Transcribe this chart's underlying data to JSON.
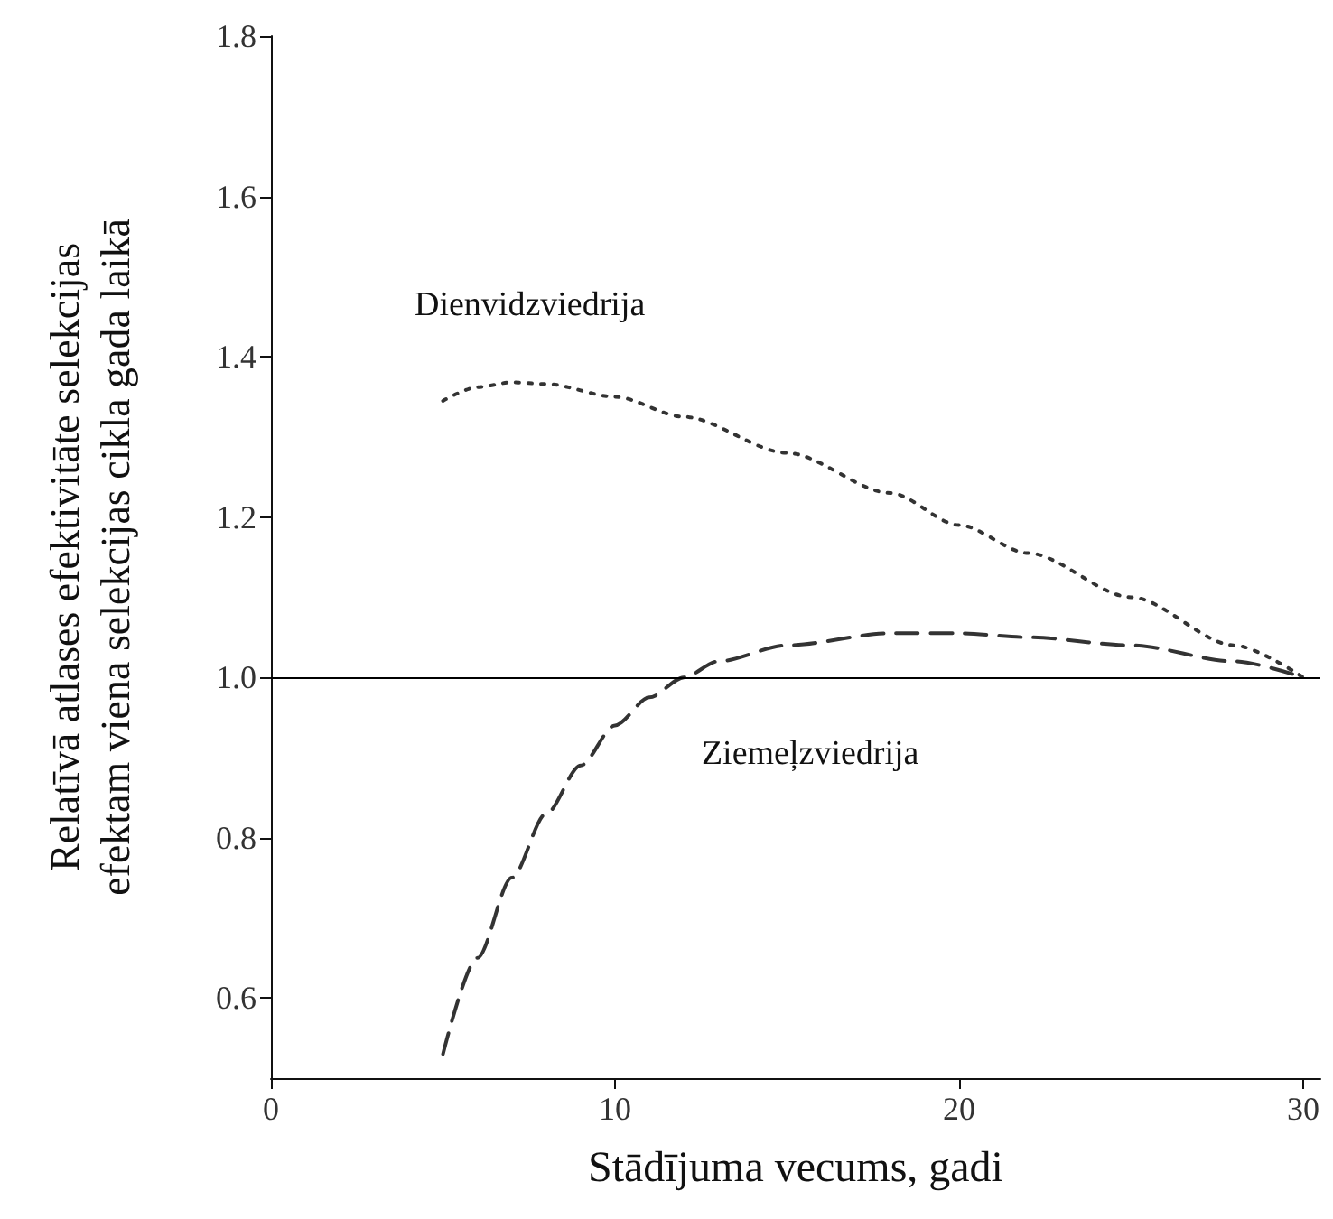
{
  "chart_data": {
    "type": "line",
    "xlabel": "Stādījuma vecums, gadi",
    "ylabel": "Relatīvā atlases efektivitāte selekcijas efektam viena selekcijas cikla gada laikā",
    "xlim": [
      0,
      30.5
    ],
    "xticks": [
      0,
      10,
      20,
      30
    ],
    "ylim": [
      0.5,
      1.8
    ],
    "yticks": [
      0.6,
      0.8,
      {
        "value": 1,
        "label": "1.0"
      },
      1.2,
      1.4,
      1.6,
      1.8
    ],
    "grid": false,
    "legend": false,
    "marker": "none",
    "ref_lines": [
      {
        "axis": "y",
        "value": 1.0,
        "color": "#000000",
        "line_style": "solid"
      }
    ],
    "series": [
      {
        "name": "Dienvidzviedrija",
        "color": "#333333",
        "line_style": "dotted",
        "x": [
          5,
          6,
          7,
          8,
          10,
          12,
          15,
          18,
          20,
          22,
          25,
          28,
          30
        ],
        "values": [
          1.345,
          1.362,
          1.368,
          1.366,
          1.35,
          1.325,
          1.28,
          1.23,
          1.19,
          1.155,
          1.1,
          1.04,
          1.0
        ]
      },
      {
        "name": "Ziemeļzviedrija",
        "color": "#333333",
        "line_style": "dashed",
        "x": [
          5,
          6,
          7,
          8,
          9,
          10,
          11,
          12,
          13,
          15,
          18,
          20,
          22,
          25,
          28,
          30
        ],
        "values": [
          0.53,
          0.65,
          0.75,
          0.83,
          0.89,
          0.94,
          0.975,
          1.0,
          1.02,
          1.04,
          1.055,
          1.055,
          1.05,
          1.04,
          1.02,
          1.0
        ]
      }
    ]
  }
}
